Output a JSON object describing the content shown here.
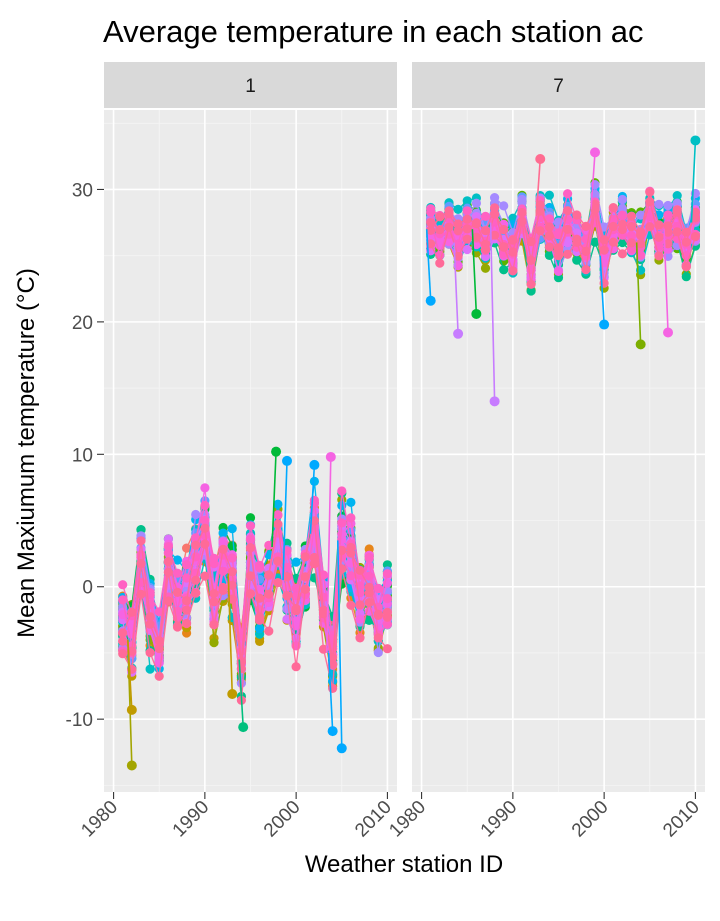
{
  "chart_data": {
    "type": "line",
    "title": "Average temperature in each station ac",
    "xlabel": "Weather station ID",
    "ylabel": "Mean Maxiumum temperature (°C)",
    "xlim": [
      1980,
      2010
    ],
    "ylim": [
      -15.5,
      36
    ],
    "x_ticks": [
      1980,
      1990,
      2000,
      2010
    ],
    "x_tick_labels": [
      "1980",
      "1990",
      "2000",
      "2010"
    ],
    "y_ticks": [
      -10,
      0,
      10,
      20,
      30
    ],
    "y_tick_labels": [
      "-10",
      "0",
      "10",
      "20",
      "30"
    ],
    "grid": true,
    "legend": "none",
    "series_palette": [
      "#F8766D",
      "#E7861A",
      "#C09B00",
      "#93AA00",
      "#5BB300",
      "#00BA38",
      "#00C08B",
      "#00BFC4",
      "#00B4F0",
      "#619CFF",
      "#A58AFF",
      "#DB72FB",
      "#F564E3",
      "#FF61C3",
      "#FF6A98",
      "#F8766D"
    ],
    "panels": [
      {
        "strip_label": "1",
        "years": [
          1981,
          1982,
          1983,
          1984,
          1985,
          1986,
          1987,
          1988,
          1989,
          1990,
          1991,
          1992,
          1993,
          1994,
          1995,
          1996,
          1997,
          1998,
          1999,
          2000,
          2001,
          2002,
          2003,
          2004,
          2005,
          2006,
          2007,
          2008,
          2009,
          2010
        ],
        "mean_values": [
          -3,
          -4,
          1.5,
          -2,
          -4.5,
          1.5,
          -1,
          -0.5,
          2.5,
          4,
          -1,
          2,
          1,
          -5.5,
          2,
          -1.5,
          0,
          3,
          0.5,
          -2,
          0.5,
          4,
          -1.5,
          -5,
          3.5,
          2,
          -1,
          0.5,
          -2.5,
          -1
        ],
        "spread": [
          4.5,
          4.5,
          4.5,
          4.5,
          3.5,
          4,
          4,
          4.5,
          4.5,
          4.5,
          4,
          4.5,
          4.5,
          4.5,
          5,
          4.5,
          4.5,
          4.5,
          4.5,
          4.5,
          4.5,
          4.5,
          4.5,
          4.5,
          5,
          5,
          4.5,
          4.5,
          4.5,
          4.5
        ],
        "outliers": [
          {
            "year": 1982,
            "value": -13.5,
            "color": "#A3A500"
          },
          {
            "year": 1982,
            "value": -9.3,
            "color": "#C09B00"
          },
          {
            "year": 1993,
            "value": -8.1,
            "color": "#C09B00"
          },
          {
            "year": 1997.8,
            "value": 10.2,
            "color": "#00BA38"
          },
          {
            "year": 1999,
            "value": 9.5,
            "color": "#00A9FF"
          },
          {
            "year": 2002,
            "value": 9.2,
            "color": "#00A9FF"
          },
          {
            "year": 2003.8,
            "value": 9.8,
            "color": "#F564E3"
          },
          {
            "year": 2005,
            "value": -12.2,
            "color": "#00A9FF"
          },
          {
            "year": 2004,
            "value": -10.9,
            "color": "#00A9FF"
          },
          {
            "year": 1994.2,
            "value": -10.6,
            "color": "#00BF7D"
          }
        ]
      },
      {
        "strip_label": "7",
        "years": [
          1981,
          1982,
          1983,
          1984,
          1985,
          1986,
          1987,
          1988,
          1989,
          1990,
          1991,
          1992,
          1993,
          1994,
          1995,
          1996,
          1997,
          1998,
          1999,
          2000,
          2001,
          2002,
          2003,
          2004,
          2005,
          2006,
          2007,
          2008,
          2009,
          2010
        ],
        "mean_values": [
          27,
          26.5,
          27.5,
          26,
          27,
          27,
          26,
          27.5,
          26,
          25.5,
          28,
          24.5,
          28,
          27,
          25.5,
          27.5,
          26.5,
          25.5,
          28.5,
          25,
          27,
          27.5,
          26.5,
          26,
          28,
          26.5,
          27,
          27.5,
          25.5,
          27.5
        ],
        "spread": [
          3,
          3,
          3,
          3,
          3,
          3,
          3,
          3,
          3,
          3,
          3,
          3.5,
          3,
          3,
          3,
          3,
          3,
          3,
          3,
          3.5,
          3,
          3,
          3,
          3,
          3,
          3,
          3,
          3,
          3,
          3
        ],
        "outliers": [
          {
            "year": 1988,
            "value": 14.0,
            "color": "#C77CFF"
          },
          {
            "year": 1984,
            "value": 19.1,
            "color": "#C77CFF"
          },
          {
            "year": 2004,
            "value": 18.3,
            "color": "#7CAE00"
          },
          {
            "year": 2007,
            "value": 19.2,
            "color": "#F564E3"
          },
          {
            "year": 2010,
            "value": 33.7,
            "color": "#00BFC4"
          },
          {
            "year": 1999,
            "value": 32.8,
            "color": "#F564E3"
          },
          {
            "year": 1993,
            "value": 32.3,
            "color": "#FF6C91"
          },
          {
            "year": 2000,
            "value": 19.8,
            "color": "#00A9FF"
          },
          {
            "year": 1981,
            "value": 21.6,
            "color": "#00A9FF"
          },
          {
            "year": 1986,
            "value": 20.6,
            "color": "#00BA38"
          }
        ]
      }
    ]
  }
}
